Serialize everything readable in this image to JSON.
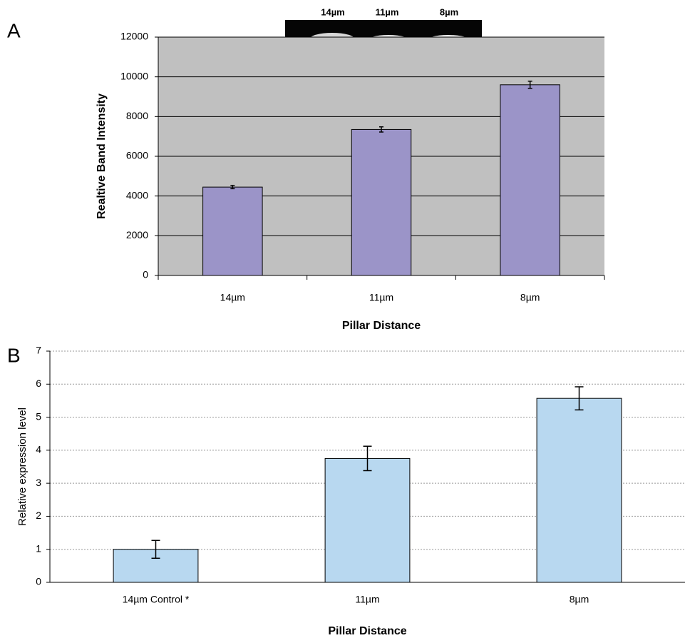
{
  "chart_data": [
    {
      "type": "bar",
      "panel_label": "A",
      "ylabel": "Realtive Band Intensity",
      "xlabel": "Pillar Distance",
      "categories": [
        "14µm",
        "11µm",
        "8µm"
      ],
      "values": [
        4450,
        7350,
        9600
      ],
      "errors": [
        80,
        130,
        180
      ],
      "color": "#9b94c8",
      "ylim": [
        0,
        12000
      ],
      "yticks": [
        0,
        2000,
        4000,
        6000,
        8000,
        10000,
        12000
      ],
      "grid": true,
      "gel_labels": [
        "14µm",
        "11µm",
        "8µm"
      ]
    },
    {
      "type": "bar",
      "panel_label": "B",
      "ylabel": "Relative expression level",
      "xlabel": "Pillar Distance",
      "categories": [
        "14µm Control *",
        "11µm",
        "8µm"
      ],
      "values": [
        1.0,
        3.75,
        5.57
      ],
      "errors": [
        0.27,
        0.37,
        0.35
      ],
      "color": "#b8d8f0",
      "ylim": [
        0,
        7
      ],
      "yticks": [
        0,
        1,
        2,
        3,
        4,
        5,
        6,
        7
      ],
      "grid": true
    }
  ]
}
